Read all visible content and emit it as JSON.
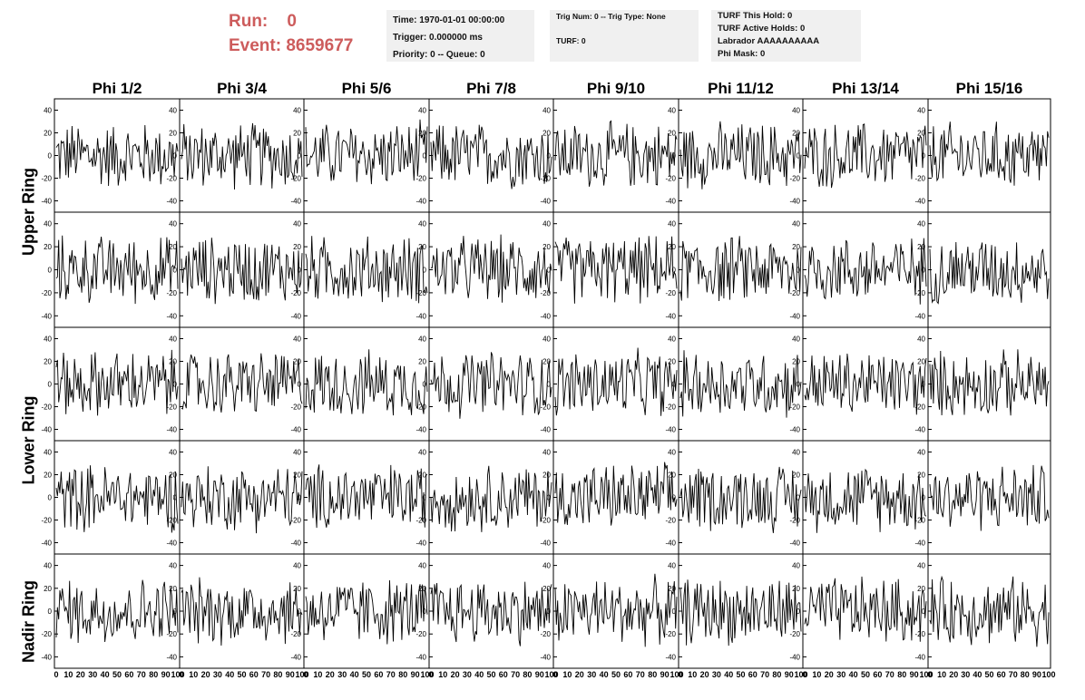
{
  "header": {
    "run_label": "Run:",
    "run_value": "0",
    "event_label": "Event:",
    "event_value": "8659677",
    "time": "Time: 1970-01-01 00:00:00",
    "trigger": "Trigger: 0.000000 ms",
    "priority": "Priority: 0 -- Queue: 0",
    "trig_num": "Trig Num: 0 -- Trig Type: None",
    "turf": "TURF: 0",
    "turf_this_hold": "TURF This Hold: 0",
    "turf_active_holds": "TURF Active Holds: 0",
    "labrador": "Labrador AAAAAAAAAA",
    "phi_mask": "Phi Mask: 0"
  },
  "columns": [
    "Phi 1/2",
    "Phi 3/4",
    "Phi 5/6",
    "Phi 7/8",
    "Phi 9/10",
    "Phi 11/12",
    "Phi 13/14",
    "Phi 15/16"
  ],
  "rows": [
    "Upper Ring",
    "Upper Ring",
    "Lower Ring",
    "Lower Ring",
    "Nadir Ring"
  ],
  "row_labels": [
    {
      "text": "Upper Ring"
    },
    {
      "text": "Lower Ring"
    },
    {
      "text": "Nadir Ring"
    }
  ],
  "chart_data": {
    "type": "line",
    "description": "40 waveform panels (5 rows x 8 phi columns), noise traces",
    "x_ticks": [
      "0",
      "10",
      "20",
      "30",
      "40",
      "50",
      "60",
      "70",
      "80",
      "90",
      "100"
    ],
    "x_range": [
      0,
      100
    ],
    "y_ticks": [
      "40",
      "20",
      "0",
      "-20",
      "-40"
    ],
    "y_range": [
      -50,
      50
    ],
    "amplitude": 30
  },
  "colors": {
    "accent": "#cd5c5c",
    "box_bg": "#f0f0f0",
    "trace": "#000000"
  }
}
